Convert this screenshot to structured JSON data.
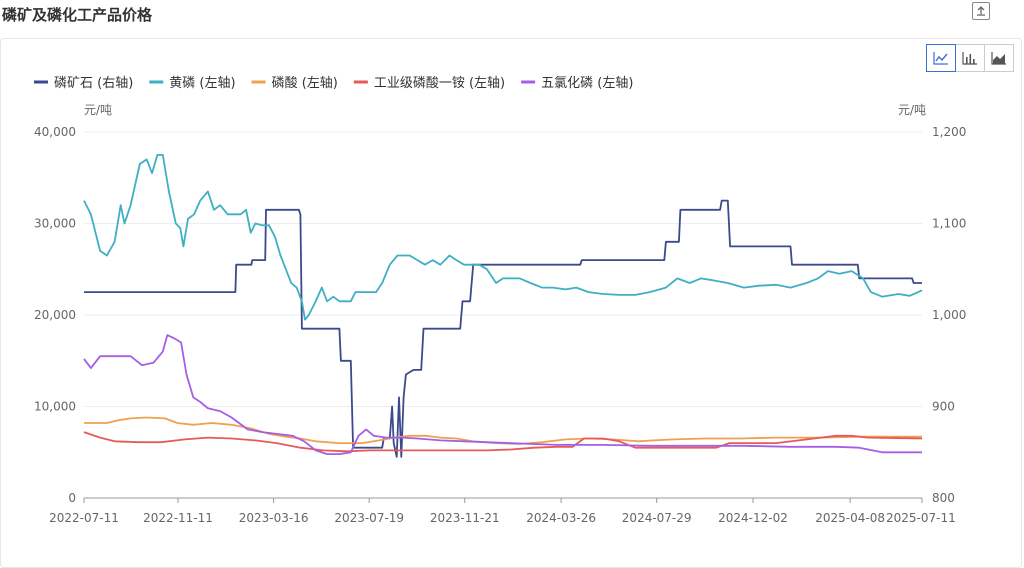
{
  "page": {
    "title": "磷矿及磷化工产品价格"
  },
  "toolbar": {
    "line_icon": "line-chart-icon",
    "bar_icon": "bar-chart-icon",
    "area_icon": "area-chart-icon",
    "export_icon": "export-icon"
  },
  "chart_data": {
    "type": "line",
    "x_ticks": [
      "2022-07-11",
      "2022-11-11",
      "2023-03-16",
      "2023-07-19",
      "2023-11-21",
      "2024-03-26",
      "2024-07-29",
      "2024-12-02",
      "2025-04-08",
      "2025-07-11"
    ],
    "y_left": {
      "unit": "元/吨",
      "ticks": [
        "0",
        "10,000",
        "20,000",
        "30,000",
        "40,000"
      ],
      "range": [
        0,
        40000
      ]
    },
    "y_right": {
      "unit": "元/吨",
      "ticks": [
        "800",
        "900",
        "1,000",
        "1,100",
        "1,200"
      ],
      "range": [
        800,
        1200
      ]
    },
    "grid": true,
    "legend_position": "top-left",
    "series": [
      {
        "name": "磷矿石 (右轴)",
        "axis": "right",
        "color": "#3a4a8c",
        "points": [
          [
            "2022-07-11",
            1025
          ],
          [
            "2023-01-25",
            1025
          ],
          [
            "2023-01-26",
            1055
          ],
          [
            "2023-02-15",
            1055
          ],
          [
            "2023-02-16",
            1060
          ],
          [
            "2023-03-05",
            1060
          ],
          [
            "2023-03-06",
            1115
          ],
          [
            "2023-04-18",
            1115
          ],
          [
            "2023-04-20",
            1110
          ],
          [
            "2023-04-22",
            985
          ],
          [
            "2023-06-10",
            985
          ],
          [
            "2023-06-12",
            950
          ],
          [
            "2023-06-25",
            950
          ],
          [
            "2023-06-28",
            855
          ],
          [
            "2023-08-05",
            855
          ],
          [
            "2023-08-07",
            865
          ],
          [
            "2023-08-15",
            865
          ],
          [
            "2023-08-18",
            900
          ],
          [
            "2023-08-20",
            860
          ],
          [
            "2023-08-24",
            845
          ],
          [
            "2023-08-27",
            910
          ],
          [
            "2023-08-30",
            845
          ],
          [
            "2023-09-02",
            910
          ],
          [
            "2023-09-05",
            935
          ],
          [
            "2023-09-15",
            940
          ],
          [
            "2023-09-25",
            940
          ],
          [
            "2023-09-28",
            985
          ],
          [
            "2023-11-15",
            985
          ],
          [
            "2023-11-18",
            1015
          ],
          [
            "2023-11-28",
            1015
          ],
          [
            "2023-12-02",
            1055
          ],
          [
            "2024-04-20",
            1055
          ],
          [
            "2024-04-22",
            1060
          ],
          [
            "2024-08-08",
            1060
          ],
          [
            "2024-08-10",
            1080
          ],
          [
            "2024-08-27",
            1080
          ],
          [
            "2024-08-29",
            1115
          ],
          [
            "2024-10-20",
            1115
          ],
          [
            "2024-10-22",
            1125
          ],
          [
            "2024-10-30",
            1125
          ],
          [
            "2024-11-02",
            1075
          ],
          [
            "2025-01-20",
            1075
          ],
          [
            "2025-01-22",
            1055
          ],
          [
            "2025-04-18",
            1055
          ],
          [
            "2025-04-20",
            1040
          ],
          [
            "2025-06-28",
            1040
          ],
          [
            "2025-06-30",
            1035
          ],
          [
            "2025-07-11",
            1035
          ]
        ]
      },
      {
        "name": "黄磷 (左轴)",
        "axis": "left",
        "color": "#3fafc3",
        "points": [
          [
            "2022-07-11",
            32500
          ],
          [
            "2022-07-20",
            31000
          ],
          [
            "2022-08-01",
            27000
          ],
          [
            "2022-08-10",
            26500
          ],
          [
            "2022-08-20",
            28000
          ],
          [
            "2022-08-28",
            32000
          ],
          [
            "2022-09-02",
            30000
          ],
          [
            "2022-09-10",
            32000
          ],
          [
            "2022-09-22",
            36500
          ],
          [
            "2022-10-01",
            37000
          ],
          [
            "2022-10-08",
            35500
          ],
          [
            "2022-10-15",
            37500
          ],
          [
            "2022-10-22",
            37500
          ],
          [
            "2022-10-30",
            33500
          ],
          [
            "2022-11-08",
            30000
          ],
          [
            "2022-11-14",
            29500
          ],
          [
            "2022-11-18",
            27500
          ],
          [
            "2022-11-24",
            30500
          ],
          [
            "2022-12-02",
            31000
          ],
          [
            "2022-12-10",
            32500
          ],
          [
            "2022-12-20",
            33500
          ],
          [
            "2022-12-28",
            31500
          ],
          [
            "2023-01-05",
            32000
          ],
          [
            "2023-01-15",
            31000
          ],
          [
            "2023-02-01",
            31000
          ],
          [
            "2023-02-08",
            31500
          ],
          [
            "2023-02-14",
            29000
          ],
          [
            "2023-02-20",
            30000
          ],
          [
            "2023-03-01",
            29800
          ],
          [
            "2023-03-10",
            29800
          ],
          [
            "2023-03-18",
            28500
          ],
          [
            "2023-03-25",
            26500
          ],
          [
            "2023-04-01",
            25000
          ],
          [
            "2023-04-08",
            23500
          ],
          [
            "2023-04-15",
            23000
          ],
          [
            "2023-04-22",
            21500
          ],
          [
            "2023-04-26",
            19500
          ],
          [
            "2023-05-01",
            20000
          ],
          [
            "2023-05-10",
            21500
          ],
          [
            "2023-05-18",
            23000
          ],
          [
            "2023-05-25",
            21500
          ],
          [
            "2023-06-02",
            22000
          ],
          [
            "2023-06-10",
            21500
          ],
          [
            "2023-06-18",
            21500
          ],
          [
            "2023-06-25",
            21500
          ],
          [
            "2023-07-01",
            22500
          ],
          [
            "2023-07-15",
            22500
          ],
          [
            "2023-07-28",
            22500
          ],
          [
            "2023-08-05",
            23500
          ],
          [
            "2023-08-15",
            25500
          ],
          [
            "2023-08-25",
            26500
          ],
          [
            "2023-09-10",
            26500
          ],
          [
            "2023-09-20",
            26000
          ],
          [
            "2023-09-30",
            25500
          ],
          [
            "2023-10-10",
            26000
          ],
          [
            "2023-10-20",
            25500
          ],
          [
            "2023-11-01",
            26500
          ],
          [
            "2023-11-10",
            26000
          ],
          [
            "2023-11-20",
            25500
          ],
          [
            "2023-12-01",
            25500
          ],
          [
            "2023-12-10",
            25500
          ],
          [
            "2023-12-20",
            25000
          ],
          [
            "2024-01-01",
            23500
          ],
          [
            "2024-01-10",
            24000
          ],
          [
            "2024-02-01",
            24000
          ],
          [
            "2024-02-15",
            23500
          ],
          [
            "2024-03-01",
            23000
          ],
          [
            "2024-03-15",
            23000
          ],
          [
            "2024-04-01",
            22800
          ],
          [
            "2024-04-15",
            23000
          ],
          [
            "2024-05-01",
            22500
          ],
          [
            "2024-05-20",
            22300
          ],
          [
            "2024-06-10",
            22200
          ],
          [
            "2024-07-01",
            22200
          ],
          [
            "2024-07-20",
            22500
          ],
          [
            "2024-08-10",
            23000
          ],
          [
            "2024-08-25",
            24000
          ],
          [
            "2024-09-10",
            23500
          ],
          [
            "2024-09-25",
            24000
          ],
          [
            "2024-10-10",
            23800
          ],
          [
            "2024-10-30",
            23500
          ],
          [
            "2024-11-20",
            23000
          ],
          [
            "2024-12-10",
            23200
          ],
          [
            "2025-01-01",
            23300
          ],
          [
            "2025-01-20",
            23000
          ],
          [
            "2025-02-10",
            23500
          ],
          [
            "2025-02-25",
            24000
          ],
          [
            "2025-03-10",
            24800
          ],
          [
            "2025-03-25",
            24500
          ],
          [
            "2025-04-10",
            24800
          ],
          [
            "2025-04-25",
            24000
          ],
          [
            "2025-05-05",
            22500
          ],
          [
            "2025-05-20",
            22000
          ],
          [
            "2025-06-10",
            22300
          ],
          [
            "2025-06-25",
            22100
          ],
          [
            "2025-07-11",
            22700
          ]
        ]
      },
      {
        "name": "磷酸 (左轴)",
        "axis": "left",
        "color": "#f0a050",
        "points": [
          [
            "2022-07-11",
            8200
          ],
          [
            "2022-08-10",
            8200
          ],
          [
            "2022-08-25",
            8500
          ],
          [
            "2022-09-10",
            8700
          ],
          [
            "2022-10-01",
            8800
          ],
          [
            "2022-10-25",
            8700
          ],
          [
            "2022-11-10",
            8200
          ],
          [
            "2022-12-01",
            8000
          ],
          [
            "2022-12-25",
            8200
          ],
          [
            "2023-01-20",
            8000
          ],
          [
            "2023-02-15",
            7600
          ],
          [
            "2023-03-10",
            7000
          ],
          [
            "2023-04-01",
            6700
          ],
          [
            "2023-04-20",
            6500
          ],
          [
            "2023-05-10",
            6200
          ],
          [
            "2023-06-10",
            6000
          ],
          [
            "2023-07-10",
            6000
          ],
          [
            "2023-08-01",
            6300
          ],
          [
            "2023-08-20",
            6600
          ],
          [
            "2023-09-10",
            6800
          ],
          [
            "2023-10-01",
            6800
          ],
          [
            "2023-10-20",
            6600
          ],
          [
            "2023-11-10",
            6500
          ],
          [
            "2023-12-01",
            6200
          ],
          [
            "2024-01-01",
            6000
          ],
          [
            "2024-02-01",
            5900
          ],
          [
            "2024-03-01",
            6100
          ],
          [
            "2024-04-01",
            6400
          ],
          [
            "2024-05-01",
            6500
          ],
          [
            "2024-06-01",
            6400
          ],
          [
            "2024-06-20",
            6300
          ],
          [
            "2024-07-05",
            6200
          ],
          [
            "2024-07-25",
            6300
          ],
          [
            "2024-08-20",
            6400
          ],
          [
            "2024-10-01",
            6500
          ],
          [
            "2024-11-15",
            6500
          ],
          [
            "2025-01-01",
            6600
          ],
          [
            "2025-03-01",
            6600
          ],
          [
            "2025-04-20",
            6700
          ],
          [
            "2025-07-11",
            6700
          ]
        ]
      },
      {
        "name": "工业级磷酸一铵 (左轴)",
        "axis": "left",
        "color": "#e65a5a",
        "points": [
          [
            "2022-07-11",
            7200
          ],
          [
            "2022-08-01",
            6600
          ],
          [
            "2022-08-20",
            6200
          ],
          [
            "2022-09-20",
            6100
          ],
          [
            "2022-10-20",
            6100
          ],
          [
            "2022-11-20",
            6400
          ],
          [
            "2022-12-20",
            6600
          ],
          [
            "2023-01-20",
            6500
          ],
          [
            "2023-02-20",
            6300
          ],
          [
            "2023-03-20",
            6000
          ],
          [
            "2023-04-20",
            5500
          ],
          [
            "2023-05-20",
            5200
          ],
          [
            "2023-06-20",
            5100
          ],
          [
            "2023-07-20",
            5200
          ],
          [
            "2023-08-20",
            5200
          ],
          [
            "2023-09-20",
            5200
          ],
          [
            "2023-10-20",
            5200
          ],
          [
            "2023-11-20",
            5200
          ],
          [
            "2023-12-20",
            5200
          ],
          [
            "2024-01-20",
            5300
          ],
          [
            "2024-02-20",
            5500
          ],
          [
            "2024-03-20",
            5600
          ],
          [
            "2024-04-10",
            5600
          ],
          [
            "2024-04-25",
            6500
          ],
          [
            "2024-05-20",
            6500
          ],
          [
            "2024-06-10",
            6200
          ],
          [
            "2024-07-01",
            5500
          ],
          [
            "2024-08-01",
            5500
          ],
          [
            "2024-09-01",
            5500
          ],
          [
            "2024-10-15",
            5500
          ],
          [
            "2024-11-01",
            6000
          ],
          [
            "2024-12-01",
            6000
          ],
          [
            "2025-01-01",
            6000
          ],
          [
            "2025-02-20",
            6500
          ],
          [
            "2025-03-20",
            6800
          ],
          [
            "2025-04-10",
            6800
          ],
          [
            "2025-05-01",
            6600
          ],
          [
            "2025-07-11",
            6500
          ]
        ]
      },
      {
        "name": "五氯化磷 (左轴)",
        "axis": "left",
        "color": "#a55ee6",
        "points": [
          [
            "2022-07-11",
            15200
          ],
          [
            "2022-07-20",
            14200
          ],
          [
            "2022-08-01",
            15500
          ],
          [
            "2022-08-20",
            15500
          ],
          [
            "2022-09-10",
            15500
          ],
          [
            "2022-09-25",
            14500
          ],
          [
            "2022-10-10",
            14800
          ],
          [
            "2022-10-22",
            16000
          ],
          [
            "2022-10-28",
            17800
          ],
          [
            "2022-11-05",
            17500
          ],
          [
            "2022-11-15",
            17000
          ],
          [
            "2022-11-22",
            13500
          ],
          [
            "2022-12-01",
            11000
          ],
          [
            "2022-12-10",
            10500
          ],
          [
            "2022-12-20",
            9800
          ],
          [
            "2023-01-05",
            9500
          ],
          [
            "2023-01-20",
            8800
          ],
          [
            "2023-02-10",
            7500
          ],
          [
            "2023-03-01",
            7200
          ],
          [
            "2023-03-20",
            7000
          ],
          [
            "2023-04-10",
            6800
          ],
          [
            "2023-04-25",
            6200
          ],
          [
            "2023-05-10",
            5200
          ],
          [
            "2023-05-25",
            4800
          ],
          [
            "2023-06-10",
            4800
          ],
          [
            "2023-06-25",
            5000
          ],
          [
            "2023-07-05",
            6800
          ],
          [
            "2023-07-15",
            7500
          ],
          [
            "2023-07-25",
            6800
          ],
          [
            "2023-08-10",
            6600
          ],
          [
            "2023-09-01",
            6600
          ],
          [
            "2023-09-20",
            6500
          ],
          [
            "2023-10-20",
            6300
          ],
          [
            "2023-11-20",
            6200
          ],
          [
            "2024-01-20",
            6000
          ],
          [
            "2024-03-20",
            5800
          ],
          [
            "2024-05-20",
            5800
          ],
          [
            "2024-07-20",
            5700
          ],
          [
            "2024-09-20",
            5700
          ],
          [
            "2024-11-20",
            5700
          ],
          [
            "2025-01-20",
            5600
          ],
          [
            "2025-03-20",
            5600
          ],
          [
            "2025-04-20",
            5500
          ],
          [
            "2025-05-20",
            5000
          ],
          [
            "2025-07-11",
            5000
          ]
        ]
      }
    ]
  }
}
